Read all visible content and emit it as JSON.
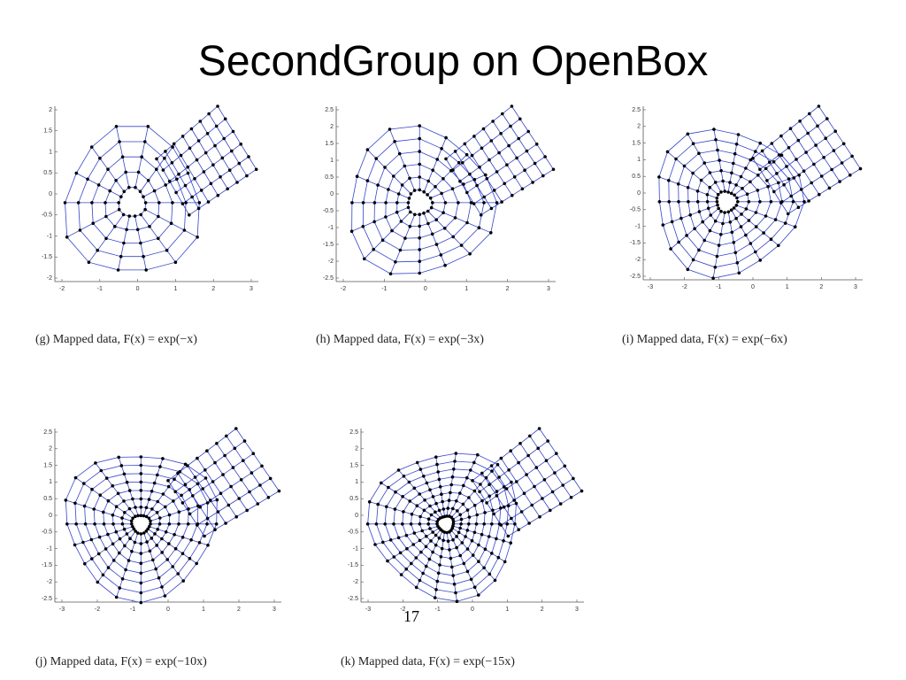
{
  "title": "SecondGroup on OpenBox",
  "figures": [
    {
      "caption": "(g) Mapped data, F(x) = exp(−x)",
      "xticks": [
        -2,
        -1,
        0,
        1,
        2,
        3
      ],
      "yticks": [
        -2,
        -1.5,
        -1,
        -0.5,
        0,
        0.5,
        1,
        1.5,
        2
      ]
    },
    {
      "caption": "(h) Mapped data, F(x) = exp(−3x)",
      "xticks": [
        -2,
        -1,
        0,
        1,
        2,
        3
      ],
      "yticks": [
        -2.5,
        -2,
        -1.5,
        -1,
        -0.5,
        0,
        0.5,
        1,
        1.5,
        2,
        2.5
      ]
    },
    {
      "caption": "(i) Mapped data, F(x) = exp(−6x)",
      "xticks": [
        -3,
        -2,
        -1,
        0,
        1,
        2,
        3
      ],
      "yticks": [
        -2.5,
        -2,
        -1.5,
        -1,
        -0.5,
        0,
        0.5,
        1,
        1.5,
        2,
        2.5
      ]
    },
    {
      "caption": "(j) Mapped data, F(x) = exp(−10x)",
      "xticks": [
        -3,
        -2,
        -1,
        0,
        1,
        2,
        3
      ],
      "yticks": [
        -2.5,
        -2,
        -1.5,
        -1,
        -0.5,
        0,
        0.5,
        1,
        1.5,
        2,
        2.5
      ]
    },
    {
      "caption": "(k) Mapped data, F(x) = exp(−15x)",
      "xticks": [
        -3,
        -2,
        -1,
        0,
        1,
        2,
        3
      ],
      "yticks": [
        -2.5,
        -2,
        -1.5,
        -1,
        -0.5,
        0,
        0.5,
        1,
        1.5,
        2,
        2.5
      ]
    }
  ],
  "page_number": "17"
}
